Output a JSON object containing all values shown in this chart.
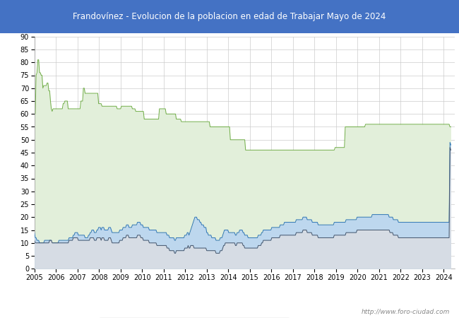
{
  "title": "Frandovínez - Evolucion de la poblacion en edad de Trabajar Mayo de 2024",
  "title_bg": "#4472c4",
  "title_color": "white",
  "ylabel_ticks": [
    0,
    5,
    10,
    15,
    20,
    25,
    30,
    35,
    40,
    45,
    50,
    55,
    60,
    65,
    70,
    75,
    80,
    85,
    90
  ],
  "watermark": "http://www.foro-ciudad.com",
  "plot_bg": "white",
  "grid_color": "#cccccc",
  "hab1664": [
    60,
    60,
    75,
    76,
    81,
    81,
    76,
    76,
    75,
    75,
    70,
    71,
    71,
    71,
    71,
    72,
    72,
    69,
    69,
    65,
    62,
    61,
    62,
    62,
    62,
    62,
    62,
    62,
    62,
    62,
    62,
    62,
    62,
    62,
    64,
    64,
    65,
    65,
    65,
    65,
    62,
    62,
    62,
    62,
    62,
    62,
    62,
    62,
    62,
    62,
    62,
    62,
    62,
    62,
    62,
    65,
    65,
    65,
    70,
    70,
    68,
    68,
    68,
    68,
    68,
    68,
    68,
    68,
    68,
    68,
    68,
    68,
    68,
    68,
    68,
    68,
    64,
    64,
    64,
    64,
    63,
    63,
    63,
    63,
    63,
    63,
    63,
    63,
    63,
    63,
    63,
    63,
    63,
    63,
    63,
    63,
    63,
    63,
    62,
    62,
    62,
    62,
    62,
    63,
    63,
    63,
    63,
    63,
    63,
    63,
    63,
    63,
    63,
    63,
    63,
    63,
    62,
    62,
    62,
    62,
    61,
    61,
    61,
    61,
    61,
    61,
    61,
    61,
    61,
    61,
    58,
    58,
    58,
    58,
    58,
    58,
    58,
    58,
    58,
    58,
    58,
    58,
    58,
    58,
    58,
    58,
    58,
    58,
    62,
    62,
    62,
    62,
    62,
    62,
    62,
    62,
    60,
    60,
    60,
    60,
    60,
    60,
    60,
    60,
    60,
    60,
    60,
    60,
    58,
    58,
    58,
    58,
    58,
    58,
    57,
    57,
    57,
    57,
    57,
    57,
    57,
    57,
    57,
    57,
    57,
    57,
    57,
    57,
    57,
    57,
    57,
    57,
    57,
    57,
    57,
    57,
    57,
    57,
    57,
    57,
    57,
    57,
    57,
    57,
    57,
    57,
    57,
    57,
    55,
    55,
    55,
    55,
    55,
    55,
    55,
    55,
    55,
    55,
    55,
    55,
    55,
    55,
    55,
    55,
    55,
    55,
    55,
    55,
    55,
    55,
    55,
    55,
    50,
    50,
    50,
    50,
    50,
    50,
    50,
    50,
    50,
    50,
    50,
    50,
    50,
    50,
    50,
    50,
    50,
    50,
    46,
    46,
    46,
    46,
    46,
    46,
    46,
    46,
    46,
    46,
    46,
    46,
    46,
    46,
    46,
    46,
    46,
    46,
    46,
    46,
    46,
    46,
    46,
    46,
    46,
    46,
    46,
    46,
    46,
    46,
    46,
    46,
    46,
    46,
    46,
    46,
    46,
    46,
    46,
    46,
    46,
    46,
    46,
    46,
    46,
    46,
    46,
    46,
    46,
    46,
    46,
    46,
    46,
    46,
    46,
    46,
    46,
    46,
    46,
    46,
    46,
    46,
    46,
    46,
    46,
    46,
    46,
    46,
    46,
    46,
    46,
    46,
    46,
    46,
    46,
    46,
    46,
    46,
    46,
    46,
    46,
    46,
    46,
    46,
    46,
    46,
    46,
    46,
    46,
    46,
    46,
    46,
    46,
    46,
    46,
    46,
    46,
    46,
    46,
    46,
    46,
    46,
    46,
    46,
    46,
    46,
    47,
    47,
    47,
    47,
    47,
    47,
    47,
    47,
    47,
    47,
    47,
    47,
    55,
    55,
    55,
    55,
    55,
    55,
    55,
    55,
    55,
    55,
    55,
    55,
    55,
    55,
    55,
    55,
    55,
    55,
    55,
    55,
    55,
    55,
    55,
    55,
    56,
    56,
    56,
    56,
    56,
    56,
    56,
    56,
    56,
    56,
    56,
    56,
    56,
    56,
    56,
    56,
    56,
    56,
    56,
    56,
    56,
    56,
    56,
    56,
    56,
    56,
    56,
    56,
    56,
    56,
    56,
    56,
    56,
    56,
    56,
    56,
    56,
    56,
    56,
    56,
    56,
    56,
    56,
    56,
    56,
    56,
    56,
    56,
    56,
    56,
    56,
    56,
    56,
    56,
    56,
    56,
    56,
    56,
    56,
    56,
    56,
    56,
    56,
    56,
    56,
    56,
    56,
    56,
    56,
    56,
    56,
    56,
    56,
    56,
    56,
    56,
    56,
    56,
    56,
    56,
    56,
    56,
    56,
    56,
    56,
    56,
    56,
    56,
    56,
    56,
    56,
    56,
    56,
    56,
    56,
    56,
    56,
    56,
    56,
    56,
    55,
    55
  ],
  "parados": [
    14,
    12,
    12,
    11,
    11,
    11,
    10,
    10,
    10,
    10,
    10,
    10,
    11,
    11,
    11,
    11,
    11,
    11,
    11,
    11,
    11,
    10,
    10,
    10,
    10,
    10,
    10,
    10,
    10,
    11,
    11,
    11,
    11,
    11,
    11,
    11,
    11,
    11,
    11,
    11,
    11,
    12,
    12,
    12,
    12,
    12,
    13,
    13,
    14,
    14,
    14,
    14,
    13,
    13,
    13,
    13,
    13,
    13,
    13,
    13,
    12,
    12,
    12,
    12,
    13,
    13,
    14,
    14,
    15,
    15,
    15,
    14,
    14,
    14,
    15,
    15,
    16,
    16,
    16,
    15,
    16,
    16,
    16,
    15,
    15,
    15,
    15,
    15,
    16,
    16,
    16,
    15,
    14,
    14,
    14,
    14,
    14,
    14,
    14,
    14,
    14,
    15,
    15,
    15,
    15,
    16,
    16,
    16,
    16,
    17,
    17,
    17,
    16,
    16,
    16,
    16,
    17,
    17,
    17,
    17,
    17,
    17,
    18,
    18,
    18,
    18,
    17,
    17,
    17,
    16,
    16,
    16,
    16,
    16,
    16,
    16,
    15,
    15,
    15,
    15,
    15,
    15,
    15,
    15,
    15,
    14,
    14,
    14,
    14,
    14,
    14,
    14,
    14,
    14,
    14,
    14,
    14,
    13,
    13,
    13,
    12,
    12,
    12,
    12,
    12,
    12,
    11,
    11,
    12,
    12,
    12,
    12,
    12,
    12,
    12,
    12,
    12,
    12,
    13,
    13,
    13,
    14,
    14,
    13,
    14,
    15,
    16,
    17,
    18,
    19,
    20,
    20,
    20,
    19,
    19,
    19,
    18,
    18,
    17,
    17,
    17,
    16,
    16,
    16,
    14,
    14,
    13,
    13,
    13,
    13,
    12,
    12,
    12,
    12,
    12,
    11,
    11,
    11,
    11,
    11,
    12,
    12,
    12,
    13,
    14,
    15,
    15,
    15,
    15,
    15,
    14,
    14,
    14,
    14,
    14,
    14,
    14,
    14,
    13,
    13,
    14,
    14,
    14,
    15,
    15,
    15,
    15,
    14,
    14,
    13,
    13,
    13,
    13,
    12,
    12,
    12,
    12,
    12,
    12,
    12,
    12,
    12,
    12,
    12,
    12,
    13,
    13,
    13,
    13,
    14,
    14,
    15,
    15,
    15,
    15,
    15,
    15,
    15,
    15,
    15,
    15,
    16,
    16,
    16,
    16,
    16,
    16,
    16,
    16,
    16,
    16,
    17,
    17,
    17,
    17,
    17,
    18,
    18,
    18,
    18,
    18,
    18,
    18,
    18,
    18,
    18,
    18,
    18,
    18,
    18,
    19,
    19,
    19,
    19,
    19,
    19,
    19,
    19,
    20,
    20,
    20,
    20,
    20,
    19,
    19,
    19,
    19,
    19,
    19,
    18,
    18,
    18,
    18,
    18,
    18,
    18,
    17,
    17,
    17,
    17,
    17,
    17,
    17,
    17,
    17,
    17,
    17,
    17,
    17,
    17,
    17,
    17,
    17,
    17,
    17,
    18,
    18,
    18,
    18,
    18,
    18,
    18,
    18,
    18,
    18,
    18,
    18,
    18,
    18,
    19,
    19,
    19,
    19,
    19,
    19,
    19,
    19,
    19,
    19,
    19,
    19,
    19,
    20,
    20,
    20,
    20,
    20,
    20,
    20,
    20,
    20,
    20,
    20,
    20,
    20,
    20,
    20,
    20,
    20,
    20,
    21,
    21,
    21,
    21,
    21,
    21,
    21,
    21,
    21,
    21,
    21,
    21,
    21,
    21,
    21,
    21,
    21,
    21,
    21,
    21,
    20,
    20,
    20,
    20,
    20,
    19,
    19,
    19,
    19,
    19,
    19,
    18,
    18,
    18,
    18,
    18,
    18,
    18,
    18,
    18,
    18,
    18,
    18,
    18,
    18,
    18,
    18,
    18,
    18,
    18,
    18,
    18,
    18,
    18,
    18,
    18,
    18,
    18,
    18,
    18,
    18,
    18,
    18,
    18,
    18,
    18,
    18,
    18,
    18,
    18,
    18,
    18,
    18,
    18,
    18,
    18,
    18,
    18,
    18,
    18,
    18,
    18,
    18,
    18,
    18,
    18,
    18,
    18,
    18,
    18,
    18,
    18,
    49,
    48
  ],
  "ocupados": [
    11,
    10,
    10,
    10,
    10,
    10,
    10,
    10,
    10,
    10,
    10,
    10,
    10,
    10,
    10,
    10,
    10,
    10,
    11,
    11,
    11,
    10,
    10,
    10,
    10,
    10,
    10,
    10,
    10,
    10,
    10,
    10,
    10,
    10,
    10,
    10,
    10,
    10,
    10,
    10,
    10,
    11,
    11,
    11,
    11,
    11,
    12,
    12,
    12,
    12,
    12,
    12,
    11,
    11,
    11,
    11,
    11,
    11,
    11,
    11,
    11,
    11,
    11,
    11,
    11,
    11,
    12,
    12,
    12,
    12,
    12,
    11,
    11,
    11,
    12,
    12,
    12,
    12,
    12,
    11,
    12,
    12,
    12,
    11,
    11,
    11,
    11,
    11,
    12,
    12,
    12,
    11,
    10,
    10,
    10,
    10,
    10,
    10,
    10,
    10,
    10,
    11,
    11,
    11,
    11,
    12,
    12,
    12,
    12,
    13,
    13,
    13,
    12,
    12,
    12,
    12,
    12,
    12,
    12,
    12,
    12,
    12,
    13,
    13,
    13,
    13,
    12,
    12,
    12,
    11,
    11,
    11,
    11,
    11,
    11,
    11,
    10,
    10,
    10,
    10,
    10,
    10,
    10,
    10,
    10,
    9,
    9,
    9,
    9,
    9,
    9,
    9,
    9,
    9,
    9,
    9,
    9,
    8,
    8,
    8,
    7,
    7,
    7,
    7,
    7,
    7,
    6,
    6,
    7,
    7,
    7,
    7,
    7,
    7,
    7,
    7,
    7,
    7,
    8,
    8,
    8,
    8,
    9,
    8,
    8,
    9,
    9,
    9,
    9,
    8,
    8,
    8,
    8,
    8,
    8,
    8,
    8,
    8,
    8,
    8,
    8,
    8,
    8,
    8,
    7,
    7,
    7,
    7,
    7,
    7,
    7,
    7,
    7,
    7,
    7,
    6,
    6,
    6,
    6,
    6,
    7,
    7,
    7,
    8,
    9,
    9,
    10,
    10,
    10,
    10,
    10,
    10,
    10,
    10,
    10,
    10,
    10,
    10,
    9,
    9,
    10,
    10,
    10,
    10,
    10,
    10,
    10,
    9,
    9,
    8,
    8,
    8,
    8,
    8,
    8,
    8,
    8,
    8,
    8,
    8,
    8,
    8,
    8,
    8,
    8,
    9,
    9,
    9,
    9,
    10,
    10,
    11,
    11,
    11,
    11,
    11,
    11,
    11,
    11,
    11,
    11,
    12,
    12,
    12,
    12,
    12,
    12,
    12,
    12,
    12,
    12,
    13,
    13,
    13,
    13,
    13,
    13,
    13,
    13,
    13,
    13,
    13,
    13,
    13,
    13,
    13,
    13,
    13,
    13,
    13,
    14,
    14,
    14,
    14,
    14,
    14,
    14,
    14,
    15,
    15,
    15,
    15,
    15,
    14,
    14,
    14,
    14,
    14,
    14,
    13,
    13,
    13,
    13,
    13,
    13,
    13,
    12,
    12,
    12,
    12,
    12,
    12,
    12,
    12,
    12,
    12,
    12,
    12,
    12,
    12,
    12,
    12,
    12,
    12,
    12,
    13,
    13,
    13,
    13,
    13,
    13,
    13,
    13,
    13,
    13,
    13,
    13,
    13,
    13,
    14,
    14,
    14,
    14,
    14,
    14,
    14,
    14,
    14,
    14,
    14,
    14,
    14,
    15,
    15,
    15,
    15,
    15,
    15,
    15,
    15,
    15,
    15,
    15,
    15,
    15,
    15,
    15,
    15,
    15,
    15,
    15,
    15,
    15,
    15,
    15,
    15,
    15,
    15,
    15,
    15,
    15,
    15,
    15,
    15,
    15,
    15,
    15,
    15,
    15,
    15,
    15,
    14,
    14,
    14,
    14,
    13,
    13,
    13,
    13,
    13,
    13,
    12,
    12,
    12,
    12,
    12,
    12,
    12,
    12,
    12,
    12,
    12,
    12,
    12,
    12,
    12,
    12,
    12,
    12,
    12,
    12,
    12,
    12,
    12,
    12,
    12,
    12,
    12,
    12,
    12,
    12,
    12,
    12,
    12,
    12,
    12,
    12,
    12,
    12,
    12,
    12,
    12,
    12,
    12,
    12,
    12,
    12,
    12,
    12,
    12,
    12,
    12,
    12,
    12,
    12,
    12,
    12,
    12,
    12,
    12,
    12,
    12,
    47,
    46
  ]
}
